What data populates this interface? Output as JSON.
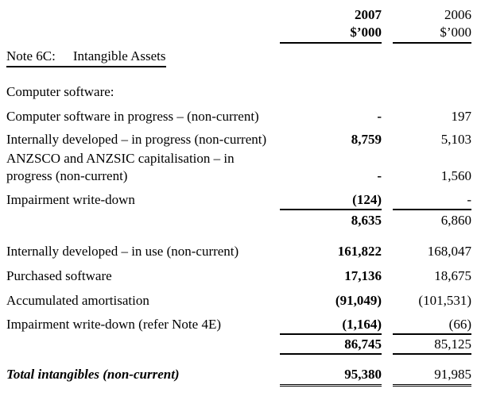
{
  "header": {
    "col2007": "2007",
    "col2006": "2006",
    "unit2007": "$’000",
    "unit2006": "$’000"
  },
  "note": {
    "prefix": "Note 6C:",
    "title": "Intangible Assets"
  },
  "rows": [
    {
      "label": "Computer software:",
      "v2007": "",
      "v2006": ""
    },
    {
      "label": "Computer software in progress – (non-current)",
      "v2007": "-",
      "v2006": "197"
    },
    {
      "label": "Internally developed – in progress (non-current)",
      "v2007": "8,759",
      "v2006": "5,103"
    },
    {
      "label": "ANZSCO and ANZSIC capitalisation – in progress (non-current)",
      "v2007": "-",
      "v2006": "1,560"
    },
    {
      "label": "Impairment write-down",
      "v2007": "(124)",
      "v2006": "-"
    },
    {
      "label": "",
      "v2007": "8,635",
      "v2006": "6,860"
    },
    {
      "label": "Internally developed – in use (non-current)",
      "v2007": "161,822",
      "v2006": "168,047"
    },
    {
      "label": "Purchased software",
      "v2007": "17,136",
      "v2006": "18,675"
    },
    {
      "label": "Accumulated amortisation",
      "v2007": "(91,049)",
      "v2006": "(101,531)"
    },
    {
      "label": "Impairment write-down (refer Note 4E)",
      "v2007": "(1,164)",
      "v2006": "(66)"
    },
    {
      "label": "",
      "v2007": "86,745",
      "v2006": "85,125"
    },
    {
      "label": "Total intangibles (non-current)",
      "v2007": "95,380",
      "v2006": "91,985"
    }
  ]
}
